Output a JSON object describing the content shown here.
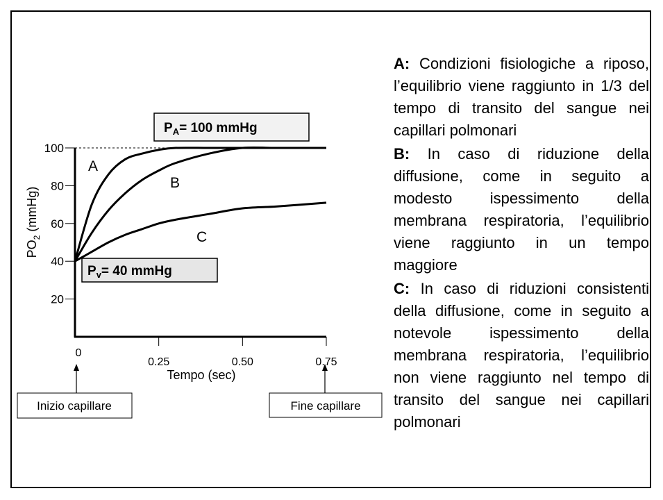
{
  "chart_data": {
    "type": "line",
    "y_label": {
      "main": "PO",
      "sub": "2",
      "rest": " (mmHg)"
    },
    "x_label": "Tempo (sec)",
    "x": [
      0,
      0.05,
      0.1,
      0.15,
      0.2,
      0.25,
      0.3,
      0.4,
      0.5,
      0.6,
      0.75
    ],
    "series": [
      {
        "name": "A",
        "color": "#000000",
        "values": [
          40,
          70,
          86,
          94,
          97,
          99,
          100,
          100,
          100,
          100,
          100
        ]
      },
      {
        "name": "B",
        "color": "#000000",
        "values": [
          40,
          55,
          67,
          76,
          83,
          88,
          92,
          97,
          100,
          100,
          100
        ]
      },
      {
        "name": "C",
        "color": "#000000",
        "values": [
          40,
          45,
          50,
          54,
          57,
          60,
          62,
          65,
          68,
          69,
          71
        ]
      }
    ],
    "xlim": [
      0,
      0.75
    ],
    "ylim": [
      0,
      100
    ],
    "xticks": [
      0,
      0.25,
      {
        "value": 0.5,
        "label": "0.50"
      },
      0.75
    ],
    "yticks": [
      20,
      40,
      60,
      80,
      100
    ],
    "pa_box": {
      "main": "P",
      "sub": "A",
      "rest": "= 100 mmHg"
    },
    "pv_box": {
      "main": "P",
      "sub": "v",
      "rest": "= 40 mmHg"
    },
    "start_label": "Inizio capillare",
    "end_label": "Fine capillare"
  },
  "descriptions": [
    {
      "label": "A:",
      "text": "Condizioni fisiologiche a riposo, l’equilibrio viene raggiunto in 1/3 del tempo di transito del sangue nei capillari polmonari"
    },
    {
      "label": "B:",
      "text": "In caso di riduzione della diffusione, come in seguito a modesto ispessimento della membrana respiratoria, l’equilibrio viene raggiunto in un tempo maggiore"
    },
    {
      "label": "C:",
      "text": "In caso di riduzioni consistenti della diffusione, come in seguito a notevole ispessimento della membrana respiratoria, l’equilibrio non viene raggiunto nel tempo di transito del sangue nei capillari polmonari"
    }
  ]
}
